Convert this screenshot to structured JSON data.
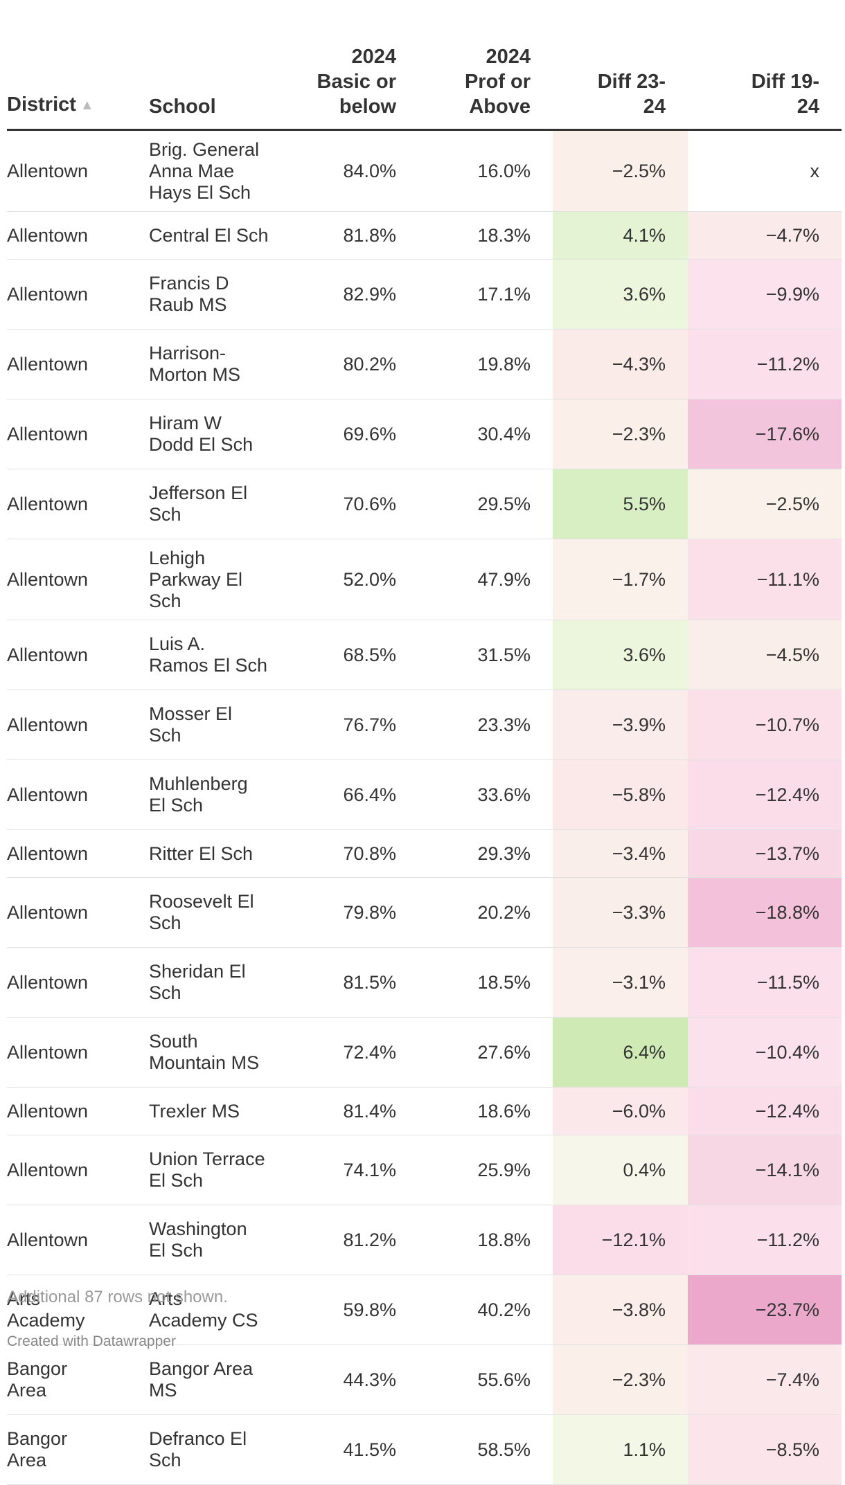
{
  "chart_data": {
    "type": "table",
    "columns": [
      {
        "key": "district",
        "lines": [
          "District"
        ],
        "sorted": "ascending"
      },
      {
        "key": "school",
        "lines": [
          "School"
        ]
      },
      {
        "key": "basic",
        "lines": [
          "2024",
          "Basic or",
          "below"
        ]
      },
      {
        "key": "prof",
        "lines": [
          "2024",
          "Prof or",
          "Above"
        ]
      },
      {
        "key": "d2324",
        "lines": [
          "Diff 23-",
          "24"
        ]
      },
      {
        "key": "d1924",
        "lines": [
          "Diff 19-",
          "24"
        ]
      }
    ],
    "rows": [
      {
        "district": [
          "Allentown"
        ],
        "school": [
          "Brig. General",
          "Anna Mae",
          "Hays El Sch"
        ],
        "basic": "84.0%",
        "prof": "16.0%",
        "d2324": "−2.5%",
        "d1924": "x",
        "d2324_color": "#faf0e9",
        "d1924_color": "#ffffff"
      },
      {
        "district": [
          "Allentown"
        ],
        "school": [
          "Central El Sch"
        ],
        "basic": "81.8%",
        "prof": "18.3%",
        "d2324": "4.1%",
        "d1924": "−4.7%",
        "d2324_color": "#e4f3d3",
        "d1924_color": "#faeaea"
      },
      {
        "district": [
          "Allentown"
        ],
        "school": [
          "Francis D",
          "Raub MS"
        ],
        "basic": "82.9%",
        "prof": "17.1%",
        "d2324": "3.6%",
        "d1924": "−9.9%",
        "d2324_color": "#ebf6dd",
        "d1924_color": "#fbe2ec"
      },
      {
        "district": [
          "Allentown"
        ],
        "school": [
          "Harrison-",
          "Morton MS"
        ],
        "basic": "80.2%",
        "prof": "19.8%",
        "d2324": "−4.3%",
        "d1924": "−11.2%",
        "d2324_color": "#fbebe8",
        "d1924_color": "#fbdfea"
      },
      {
        "district": [
          "Allentown"
        ],
        "school": [
          "Hiram W",
          "Dodd El Sch"
        ],
        "basic": "69.6%",
        "prof": "30.4%",
        "d2324": "−2.3%",
        "d1924": "−17.6%",
        "d2324_color": "#faf0e9",
        "d1924_color": "#f3c5dc"
      },
      {
        "district": [
          "Allentown"
        ],
        "school": [
          "Jefferson El",
          "Sch"
        ],
        "basic": "70.6%",
        "prof": "29.5%",
        "d2324": "5.5%",
        "d1924": "−2.5%",
        "d2324_color": "#d8efc3",
        "d1924_color": "#faf1ea"
      },
      {
        "district": [
          "Allentown"
        ],
        "school": [
          "Lehigh",
          "Parkway El",
          "Sch"
        ],
        "basic": "52.0%",
        "prof": "47.9%",
        "d2324": "−1.7%",
        "d1924": "−11.1%",
        "d2324_color": "#faf1ea",
        "d1924_color": "#fbe0ea"
      },
      {
        "district": [
          "Allentown"
        ],
        "school": [
          "Luis A.",
          "Ramos El Sch"
        ],
        "basic": "68.5%",
        "prof": "31.5%",
        "d2324": "3.6%",
        "d1924": "−4.5%",
        "d2324_color": "#ebf6dd",
        "d1924_color": "#faeeea"
      },
      {
        "district": [
          "Allentown"
        ],
        "school": [
          "Mosser El",
          "Sch"
        ],
        "basic": "76.7%",
        "prof": "23.3%",
        "d2324": "−3.9%",
        "d1924": "−10.7%",
        "d2324_color": "#faecea",
        "d1924_color": "#fbe0ea"
      },
      {
        "district": [
          "Allentown"
        ],
        "school": [
          "Muhlenberg",
          "El Sch"
        ],
        "basic": "66.4%",
        "prof": "33.6%",
        "d2324": "−5.8%",
        "d1924": "−12.4%",
        "d2324_color": "#fbe9ea",
        "d1924_color": "#fbdde9"
      },
      {
        "district": [
          "Allentown"
        ],
        "school": [
          "Ritter El Sch"
        ],
        "basic": "70.8%",
        "prof": "29.3%",
        "d2324": "−3.4%",
        "d1924": "−13.7%",
        "d2324_color": "#faeeea",
        "d1924_color": "#f9d8e6"
      },
      {
        "district": [
          "Allentown"
        ],
        "school": [
          "Roosevelt El",
          "Sch"
        ],
        "basic": "79.8%",
        "prof": "20.2%",
        "d2324": "−3.3%",
        "d1924": "−18.8%",
        "d2324_color": "#faeeea",
        "d1924_color": "#f3c2da"
      },
      {
        "district": [
          "Allentown"
        ],
        "school": [
          "Sheridan El",
          "Sch"
        ],
        "basic": "81.5%",
        "prof": "18.5%",
        "d2324": "−3.1%",
        "d1924": "−11.5%",
        "d2324_color": "#faefea",
        "d1924_color": "#fbdfea"
      },
      {
        "district": [
          "Allentown"
        ],
        "school": [
          "South",
          "Mountain MS"
        ],
        "basic": "72.4%",
        "prof": "27.6%",
        "d2324": "6.4%",
        "d1924": "−10.4%",
        "d2324_color": "#cfeab5",
        "d1924_color": "#fbe1eb"
      },
      {
        "district": [
          "Allentown"
        ],
        "school": [
          "Trexler MS"
        ],
        "basic": "81.4%",
        "prof": "18.6%",
        "d2324": "−6.0%",
        "d1924": "−12.4%",
        "d2324_color": "#fbe8ea",
        "d1924_color": "#fbdde9"
      },
      {
        "district": [
          "Allentown"
        ],
        "school": [
          "Union Terrace",
          "El Sch"
        ],
        "basic": "74.1%",
        "prof": "25.9%",
        "d2324": "0.4%",
        "d1924": "−14.1%",
        "d2324_color": "#f6f6ea",
        "d1924_color": "#f8d7e5"
      },
      {
        "district": [
          "Allentown"
        ],
        "school": [
          "Washington",
          "El Sch"
        ],
        "basic": "81.2%",
        "prof": "18.8%",
        "d2324": "−12.1%",
        "d1924": "−11.2%",
        "d2324_color": "#fbdde9",
        "d1924_color": "#fbdfea"
      },
      {
        "district": [
          "Arts",
          "Academy"
        ],
        "school": [
          "Arts",
          "Academy CS"
        ],
        "basic": "59.8%",
        "prof": "40.2%",
        "d2324": "−3.8%",
        "d1924": "−23.7%",
        "d2324_color": "#faedea",
        "d1924_color": "#eba8cb"
      },
      {
        "district": [
          "Bangor",
          "Area"
        ],
        "school": [
          "Bangor Area",
          "MS"
        ],
        "basic": "44.3%",
        "prof": "55.6%",
        "d2324": "−2.3%",
        "d1924": "−7.4%",
        "d2324_color": "#faf0e9",
        "d1924_color": "#fbe8ea"
      },
      {
        "district": [
          "Bangor",
          "Area"
        ],
        "school": [
          "Defranco El",
          "Sch"
        ],
        "basic": "41.5%",
        "prof": "58.5%",
        "d2324": "1.1%",
        "d1924": "−8.5%",
        "d2324_color": "#f2f7e6",
        "d1924_color": "#fbe5eb"
      }
    ]
  },
  "footer": {
    "note": "Additional 87 rows not shown.",
    "credit": "Created with Datawrapper"
  }
}
